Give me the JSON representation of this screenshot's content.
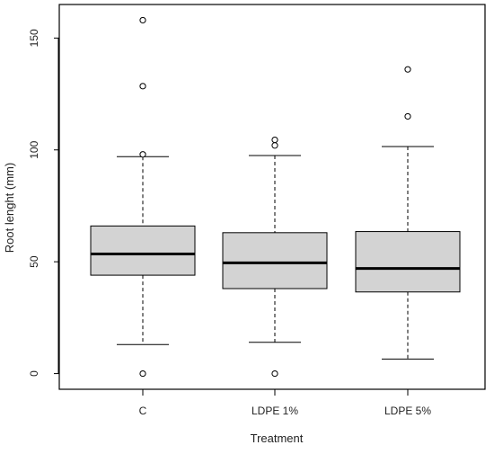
{
  "chart_data": {
    "type": "boxplot",
    "title": "",
    "xlabel": "Treatment",
    "ylabel": "Root lenght (mm)",
    "ylim": [
      -7,
      165
    ],
    "y_ticks": [
      0,
      50,
      100,
      150
    ],
    "y_tick_labels": [
      "0",
      "50",
      "100",
      "150"
    ],
    "grid": false,
    "categories": [
      "C",
      "LDPE 1%",
      "LDPE 5%"
    ],
    "boxes": [
      {
        "category": "C",
        "whisker_low": 13,
        "q1": 44,
        "median": 53.5,
        "q3": 66,
        "whisker_high": 97,
        "outliers": [
          0,
          98,
          128.5,
          158
        ]
      },
      {
        "category": "LDPE 1%",
        "whisker_low": 14,
        "q1": 38,
        "median": 49.5,
        "q3": 63,
        "whisker_high": 97.5,
        "outliers": [
          0,
          102,
          104.5
        ]
      },
      {
        "category": "LDPE 5%",
        "whisker_low": 6.5,
        "q1": 36.5,
        "median": 47,
        "q3": 63.5,
        "whisker_high": 101.5,
        "outliers": [
          115,
          136
        ]
      }
    ],
    "colors": {
      "box_fill": "#d3d3d3",
      "stroke": "#000000",
      "outlier": "#000000"
    }
  }
}
